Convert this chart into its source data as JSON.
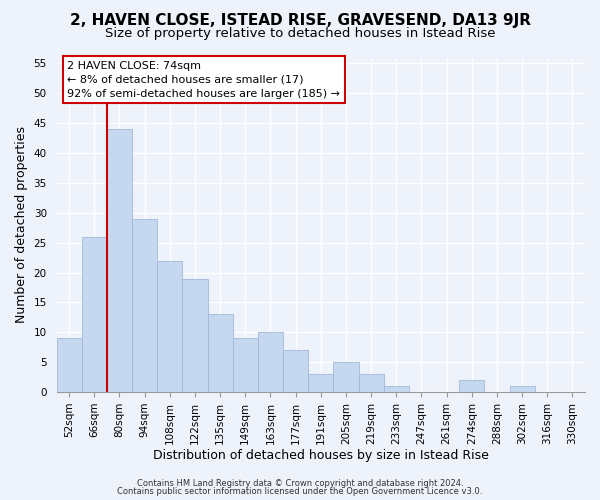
{
  "title": "2, HAVEN CLOSE, ISTEAD RISE, GRAVESEND, DA13 9JR",
  "subtitle": "Size of property relative to detached houses in Istead Rise",
  "xlabel": "Distribution of detached houses by size in Istead Rise",
  "ylabel": "Number of detached properties",
  "footer_line1": "Contains HM Land Registry data © Crown copyright and database right 2024.",
  "footer_line2": "Contains public sector information licensed under the Open Government Licence v3.0.",
  "annotation_line1": "2 HAVEN CLOSE: 74sqm",
  "annotation_line2": "← 8% of detached houses are smaller (17)",
  "annotation_line3": "92% of semi-detached houses are larger (185) →",
  "bar_labels": [
    "52sqm",
    "66sqm",
    "80sqm",
    "94sqm",
    "108sqm",
    "122sqm",
    "135sqm",
    "149sqm",
    "163sqm",
    "177sqm",
    "191sqm",
    "205sqm",
    "219sqm",
    "233sqm",
    "247sqm",
    "261sqm",
    "274sqm",
    "288sqm",
    "302sqm",
    "316sqm",
    "330sqm"
  ],
  "bar_values": [
    9,
    26,
    44,
    29,
    22,
    19,
    13,
    9,
    10,
    7,
    3,
    5,
    3,
    1,
    0,
    0,
    2,
    0,
    1,
    0,
    0
  ],
  "bar_color": "#c5d8f0",
  "bar_edge_color": "#a0b8d8",
  "reference_line_color": "#cc0000",
  "ylim": [
    0,
    56
  ],
  "yticks": [
    0,
    5,
    10,
    15,
    20,
    25,
    30,
    35,
    40,
    45,
    50,
    55
  ],
  "background_color": "#eef2fa",
  "grid_color": "#ffffff",
  "title_fontsize": 11,
  "subtitle_fontsize": 9.5,
  "axis_label_fontsize": 9,
  "tick_fontsize": 7.5,
  "annotation_fontsize": 8,
  "footer_fontsize": 6,
  "annotation_box_color": "#ffffff",
  "annotation_box_edge": "#cc0000"
}
